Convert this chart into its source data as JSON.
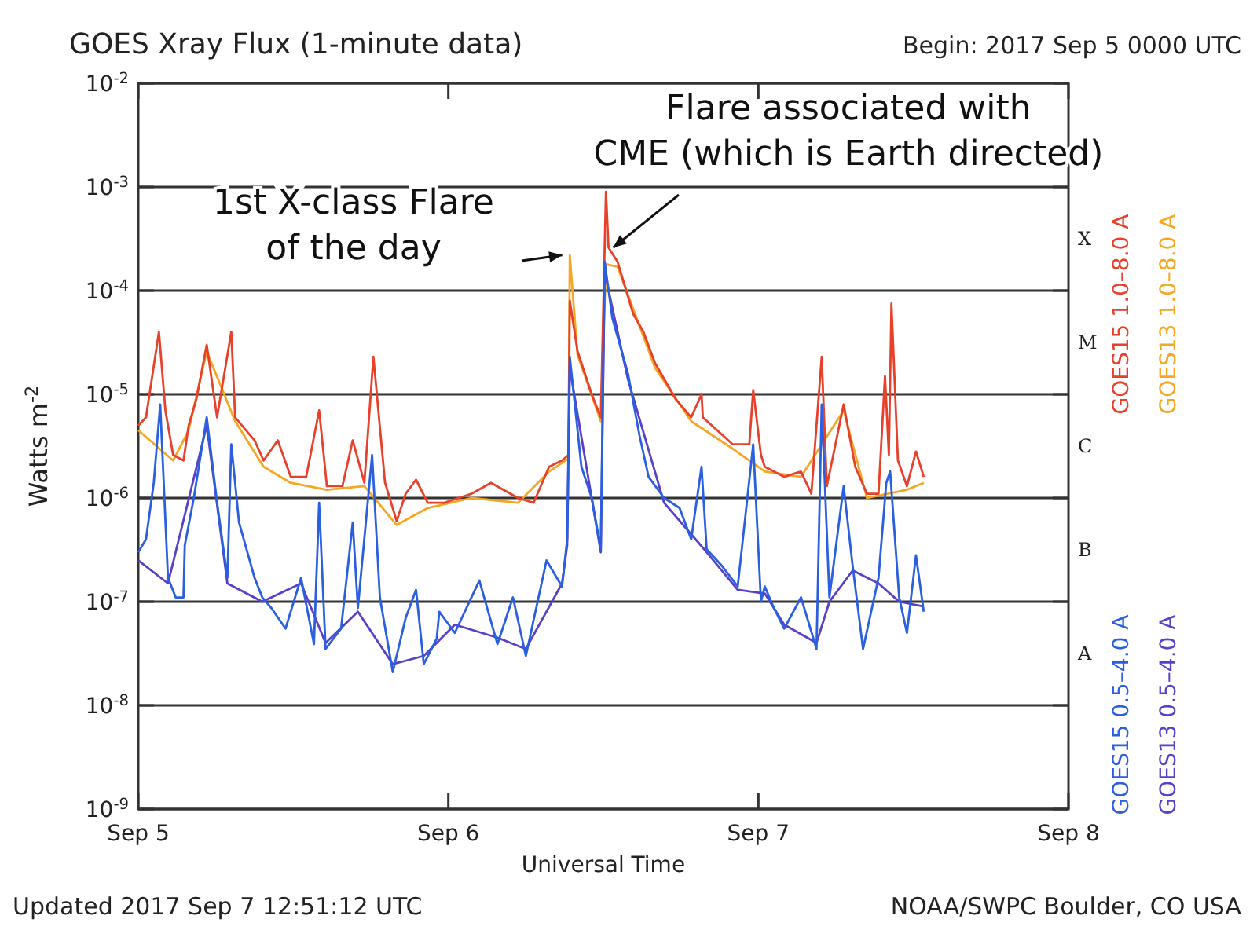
{
  "chart_data": {
    "type": "line",
    "title": "GOES Xray Flux (1-minute data)",
    "subtitle": "Begin:  2017 Sep 5 0000 UTC",
    "xlabel": "Universal Time",
    "ylabel": "Watts m$^{-2}$",
    "xlim": [
      "2017-09-05",
      "2017-09-08"
    ],
    "xticks": [
      {
        "value": "2017-09-05",
        "label": "Sep 5"
      },
      {
        "value": "2017-09-06",
        "label": "Sep 6"
      },
      {
        "value": "2017-09-07",
        "label": "Sep 7"
      },
      {
        "value": "2017-09-08",
        "label": "Sep 8"
      }
    ],
    "ylim": [
      1e-09,
      0.01
    ],
    "yticks": [
      {
        "value": 1e-09,
        "label": "10$^{-9}$"
      },
      {
        "value": 1e-08,
        "label": "10$^{-8}$"
      },
      {
        "value": 1e-07,
        "label": "10$^{-7}$"
      },
      {
        "value": 1e-06,
        "label": "10$^{-6}$"
      },
      {
        "value": 1e-05,
        "label": "10$^{-5}$"
      },
      {
        "value": 0.0001,
        "label": "10$^{-4}$"
      },
      {
        "value": 0.001,
        "label": "10$^{-3}$"
      },
      {
        "value": 0.01,
        "label": "10$^{-2}$"
      }
    ],
    "log": true,
    "grid": "y",
    "legend": "right",
    "marker": "none",
    "line_style": "solid",
    "series": [
      {
        "name": "GOES15 1.0–8.0 A",
        "color": "#e8402a",
        "x": [
          "2017-09-05T00:00",
          "2017-09-05T00:36",
          "2017-09-05T01:36",
          "2017-09-05T02:06",
          "2017-09-05T02:42",
          "2017-09-05T03:30",
          "2017-09-05T03:54",
          "2017-09-05T04:30",
          "2017-09-05T05:18",
          "2017-09-05T06:06",
          "2017-09-05T07:12",
          "2017-09-05T07:30",
          "2017-09-05T09:00",
          "2017-09-05T09:42",
          "2017-09-05T10:48",
          "2017-09-05T11:48",
          "2017-09-05T13:00",
          "2017-09-05T14:00",
          "2017-09-05T14:36",
          "2017-09-05T15:48",
          "2017-09-05T16:36",
          "2017-09-05T17:30",
          "2017-09-05T18:12",
          "2017-09-05T19:06",
          "2017-09-05T20:00",
          "2017-09-05T20:42",
          "2017-09-05T21:30",
          "2017-09-05T22:24",
          "2017-09-05T23:42",
          "2017-09-06T01:48",
          "2017-09-06T03:18",
          "2017-09-06T05:24",
          "2017-09-06T06:36",
          "2017-09-06T07:48",
          "2017-09-06T08:48",
          "2017-09-06T09:18",
          "2017-09-06T09:24",
          "2017-09-06T10:00",
          "2017-09-06T11:06",
          "2017-09-06T11:48",
          "2017-09-06T12:12",
          "2017-09-06T12:24",
          "2017-09-06T13:06",
          "2017-09-06T14:18",
          "2017-09-06T15:06",
          "2017-09-06T16:00",
          "2017-09-06T17:36",
          "2017-09-06T18:48",
          "2017-09-06T19:36",
          "2017-09-06T19:42",
          "2017-09-06T22:00",
          "2017-09-06T23:18",
          "2017-09-06T23:36",
          "2017-09-07T00:12",
          "2017-09-07T00:30",
          "2017-09-07T02:00",
          "2017-09-07T03:18",
          "2017-09-07T04:06",
          "2017-09-07T04:54",
          "2017-09-07T05:18",
          "2017-09-07T06:36",
          "2017-09-07T07:30",
          "2017-09-07T08:24",
          "2017-09-07T09:18",
          "2017-09-07T09:48",
          "2017-09-07T10:06",
          "2017-09-07T10:18",
          "2017-09-07T10:48",
          "2017-09-07T11:30",
          "2017-09-07T12:12",
          "2017-09-07T12:48"
        ],
        "values": [
          5e-06,
          6e-06,
          4e-05,
          7e-06,
          2.6e-06,
          2.3e-06,
          5e-06,
          9e-06,
          3e-05,
          6e-06,
          4e-05,
          6e-06,
          3.6e-06,
          2.3e-06,
          3.6e-06,
          1.6e-06,
          1.6e-06,
          7e-06,
          1.3e-06,
          1.3e-06,
          3.6e-06,
          1.4e-06,
          2.3e-05,
          1.4e-06,
          6e-07,
          1.1e-06,
          1.5e-06,
          9e-07,
          9e-07,
          1.1e-06,
          1.4e-06,
          1e-06,
          9e-07,
          2e-06,
          2.3e-06,
          2.6e-06,
          8e-05,
          2.6e-05,
          1e-05,
          6e-06,
          0.0009,
          0.00026,
          0.00019,
          6e-05,
          4e-05,
          2e-05,
          9e-06,
          6e-06,
          1e-05,
          6e-06,
          3.3e-06,
          3.3e-06,
          1.1e-05,
          2.6e-06,
          2e-06,
          1.6e-06,
          1.8e-06,
          1.1e-06,
          2.3e-05,
          1.3e-06,
          8e-06,
          2e-06,
          1.1e-06,
          1.1e-06,
          1.5e-05,
          2.6e-06,
          7.5e-05,
          2.3e-06,
          1.3e-06,
          2.8e-06,
          1.6e-06
        ]
      },
      {
        "name": "GOES13 1.0–8.0 A",
        "color": "#f5a623",
        "x": [
          "2017-09-05T00:00",
          "2017-09-05T02:42",
          "2017-09-05T03:54",
          "2017-09-05T05:18",
          "2017-09-05T07:30",
          "2017-09-05T09:42",
          "2017-09-05T11:48",
          "2017-09-05T14:36",
          "2017-09-05T17:30",
          "2017-09-05T20:00",
          "2017-09-05T22:24",
          "2017-09-06T01:48",
          "2017-09-06T05:24",
          "2017-09-06T07:48",
          "2017-09-06T09:18",
          "2017-09-06T09:24",
          "2017-09-06T10:00",
          "2017-09-06T11:48",
          "2017-09-06T12:12",
          "2017-09-06T13:06",
          "2017-09-06T16:00",
          "2017-09-06T18:48",
          "2017-09-06T22:00",
          "2017-09-07T00:30",
          "2017-09-07T03:18",
          "2017-09-07T06:36",
          "2017-09-07T08:24",
          "2017-09-07T11:30",
          "2017-09-07T12:48"
        ],
        "values": [
          4.5e-06,
          2.3e-06,
          4.5e-06,
          2.6e-05,
          5.5e-06,
          2e-06,
          1.4e-06,
          1.2e-06,
          1.3e-06,
          5.5e-07,
          8e-07,
          1e-06,
          9e-07,
          1.8e-06,
          2.4e-06,
          0.00022,
          2.4e-05,
          5.5e-06,
          0.00018,
          0.00017,
          1.8e-05,
          5.5e-06,
          3e-06,
          1.8e-06,
          1.6e-06,
          7e-06,
          1e-06,
          1.2e-06,
          1.4e-06
        ]
      },
      {
        "name": "GOES15 0.5–4.0 A",
        "color": "#2a5fe0",
        "x": [
          "2017-09-05T00:00",
          "2017-09-05T00:36",
          "2017-09-05T01:12",
          "2017-09-05T01:42",
          "2017-09-05T02:18",
          "2017-09-05T02:54",
          "2017-09-05T03:30",
          "2017-09-05T03:36",
          "2017-09-05T04:18",
          "2017-09-05T05:18",
          "2017-09-05T06:06",
          "2017-09-05T06:54",
          "2017-09-05T07:12",
          "2017-09-05T07:48",
          "2017-09-05T09:00",
          "2017-09-05T09:36",
          "2017-09-05T10:18",
          "2017-09-05T11:24",
          "2017-09-05T12:36",
          "2017-09-05T13:36",
          "2017-09-05T14:00",
          "2017-09-05T14:30",
          "2017-09-05T15:42",
          "2017-09-05T16:36",
          "2017-09-05T17:00",
          "2017-09-05T18:06",
          "2017-09-05T18:42",
          "2017-09-05T19:42",
          "2017-09-05T20:42",
          "2017-09-05T21:30",
          "2017-09-05T22:06",
          "2017-09-05T23:06",
          "2017-09-05T23:18",
          "2017-09-06T00:30",
          "2017-09-06T02:24",
          "2017-09-06T03:48",
          "2017-09-06T05:00",
          "2017-09-06T06:00",
          "2017-09-06T07:36",
          "2017-09-06T08:48",
          "2017-09-06T09:12",
          "2017-09-06T09:24",
          "2017-09-06T10:18",
          "2017-09-06T11:06",
          "2017-09-06T11:48",
          "2017-09-06T12:06",
          "2017-09-06T12:42",
          "2017-09-06T13:54",
          "2017-09-06T14:48",
          "2017-09-06T15:30",
          "2017-09-06T16:42",
          "2017-09-06T17:54",
          "2017-09-06T18:48",
          "2017-09-06T19:36",
          "2017-09-06T20:00",
          "2017-09-06T21:12",
          "2017-09-06T22:24",
          "2017-09-06T23:36",
          "2017-09-07T00:12",
          "2017-09-07T00:30",
          "2017-09-07T01:12",
          "2017-09-07T02:00",
          "2017-09-07T03:18",
          "2017-09-07T04:30",
          "2017-09-07T04:54",
          "2017-09-07T05:30",
          "2017-09-07T06:36",
          "2017-09-07T07:18",
          "2017-09-07T08:06",
          "2017-09-07T09:18",
          "2017-09-07T09:54",
          "2017-09-07T10:12",
          "2017-09-07T10:54",
          "2017-09-07T11:30",
          "2017-09-07T12:12",
          "2017-09-07T12:48"
        ],
        "values": [
          3e-07,
          4e-07,
          1.4e-06,
          8e-06,
          1.7e-07,
          1.1e-07,
          1.1e-07,
          3.5e-07,
          1e-06,
          6e-06,
          9e-07,
          1.7e-07,
          3.3e-06,
          5.8e-07,
          1.7e-07,
          1.1e-07,
          8.7e-08,
          5.5e-08,
          1.7e-07,
          3.9e-08,
          9e-07,
          3.5e-08,
          5.5e-08,
          5.8e-07,
          8.7e-08,
          2.6e-06,
          1.1e-07,
          2.1e-08,
          7e-08,
          1.3e-07,
          2.5e-08,
          4.4e-08,
          8e-08,
          5e-08,
          1.6e-07,
          3.9e-08,
          1.1e-07,
          3e-08,
          2.5e-07,
          1.4e-07,
          4e-07,
          2.3e-05,
          2e-06,
          1e-06,
          3.2e-07,
          0.00019,
          5.4e-05,
          1.6e-05,
          4e-06,
          1.6e-06,
          1e-06,
          8e-07,
          4e-07,
          2e-06,
          3.2e-07,
          2.2e-07,
          1.4e-07,
          3.3e-06,
          1e-07,
          1.4e-07,
          8.7e-08,
          5.5e-08,
          1.1e-07,
          3.5e-08,
          8e-06,
          1.1e-07,
          1.3e-06,
          2.2e-07,
          3.5e-08,
          1.7e-07,
          1.4e-06,
          1.8e-06,
          1.1e-07,
          5e-08,
          2.8e-07,
          8e-08
        ]
      },
      {
        "name": "GOES13 0.5–4.0 A",
        "color": "#5a3fc8",
        "x": [
          "2017-09-05T00:00",
          "2017-09-05T02:18",
          "2017-09-05T05:18",
          "2017-09-05T06:54",
          "2017-09-05T09:36",
          "2017-09-05T12:36",
          "2017-09-05T14:30",
          "2017-09-05T17:00",
          "2017-09-05T19:42",
          "2017-09-05T22:06",
          "2017-09-06T00:30",
          "2017-09-06T03:48",
          "2017-09-06T06:00",
          "2017-09-06T08:48",
          "2017-09-06T09:12",
          "2017-09-06T09:24",
          "2017-09-06T11:48",
          "2017-09-06T12:06",
          "2017-09-06T13:54",
          "2017-09-06T16:42",
          "2017-09-06T20:00",
          "2017-09-06T22:24",
          "2017-09-07T00:30",
          "2017-09-07T02:00",
          "2017-09-07T04:30",
          "2017-09-07T05:30",
          "2017-09-07T07:18",
          "2017-09-07T09:18",
          "2017-09-07T10:54",
          "2017-09-07T12:48"
        ],
        "values": [
          2.5e-07,
          1.5e-07,
          5e-06,
          1.5e-07,
          1e-07,
          1.5e-07,
          4e-08,
          8e-08,
          2.5e-08,
          3e-08,
          6e-08,
          4.5e-08,
          3.5e-08,
          1.5e-07,
          3.5e-07,
          1.8e-05,
          3e-07,
          0.00015,
          1.4e-05,
          9e-07,
          3e-07,
          1.3e-07,
          1.2e-07,
          6e-08,
          4e-08,
          1e-07,
          2e-07,
          1.5e-07,
          1e-07,
          9e-08
        ]
      }
    ],
    "annotations": [
      "A",
      "B",
      "C",
      "M",
      "X",
      {
        "text": "1st X-class Flare\nof the day",
        "x": "2017-09-06T09:18",
        "y": 0.00022
      },
      {
        "text": "Flare associated with\nCME (which is Earth directed)",
        "x": "2017-09-06T12:24",
        "y": 0.00026
      },
      "Updated 2017 Sep  7 12:51:12 UTC",
      "NOAA/SWPC Boulder, CO USA"
    ]
  }
}
